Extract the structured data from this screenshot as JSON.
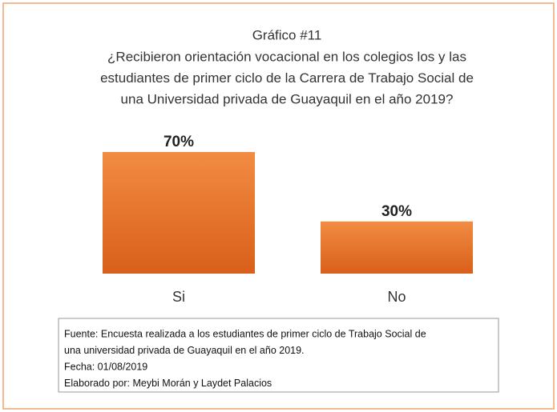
{
  "chart_data": {
    "type": "bar",
    "title": "Gráfico #11",
    "subtitle": [
      "¿Recibieron orientación vocacional en los colegios los y las",
      "estudiantes de primer ciclo de la Carrera de Trabajo Social de",
      "una Universidad privada de Guayaquil en el año 2019?"
    ],
    "categories": [
      "Si",
      "No"
    ],
    "values": [
      70,
      30
    ],
    "value_labels": [
      "70%",
      "30%"
    ],
    "color": "#e8732b",
    "source": [
      "Fuente: Encuesta realizada a los estudiantes de primer ciclo de Trabajo Social de",
      "una universidad privada de Guayaquil en el año 2019.",
      "Fecha: 01/08/2019",
      "Elaborado por: Meybi Morán y Laydet Palacios"
    ]
  }
}
